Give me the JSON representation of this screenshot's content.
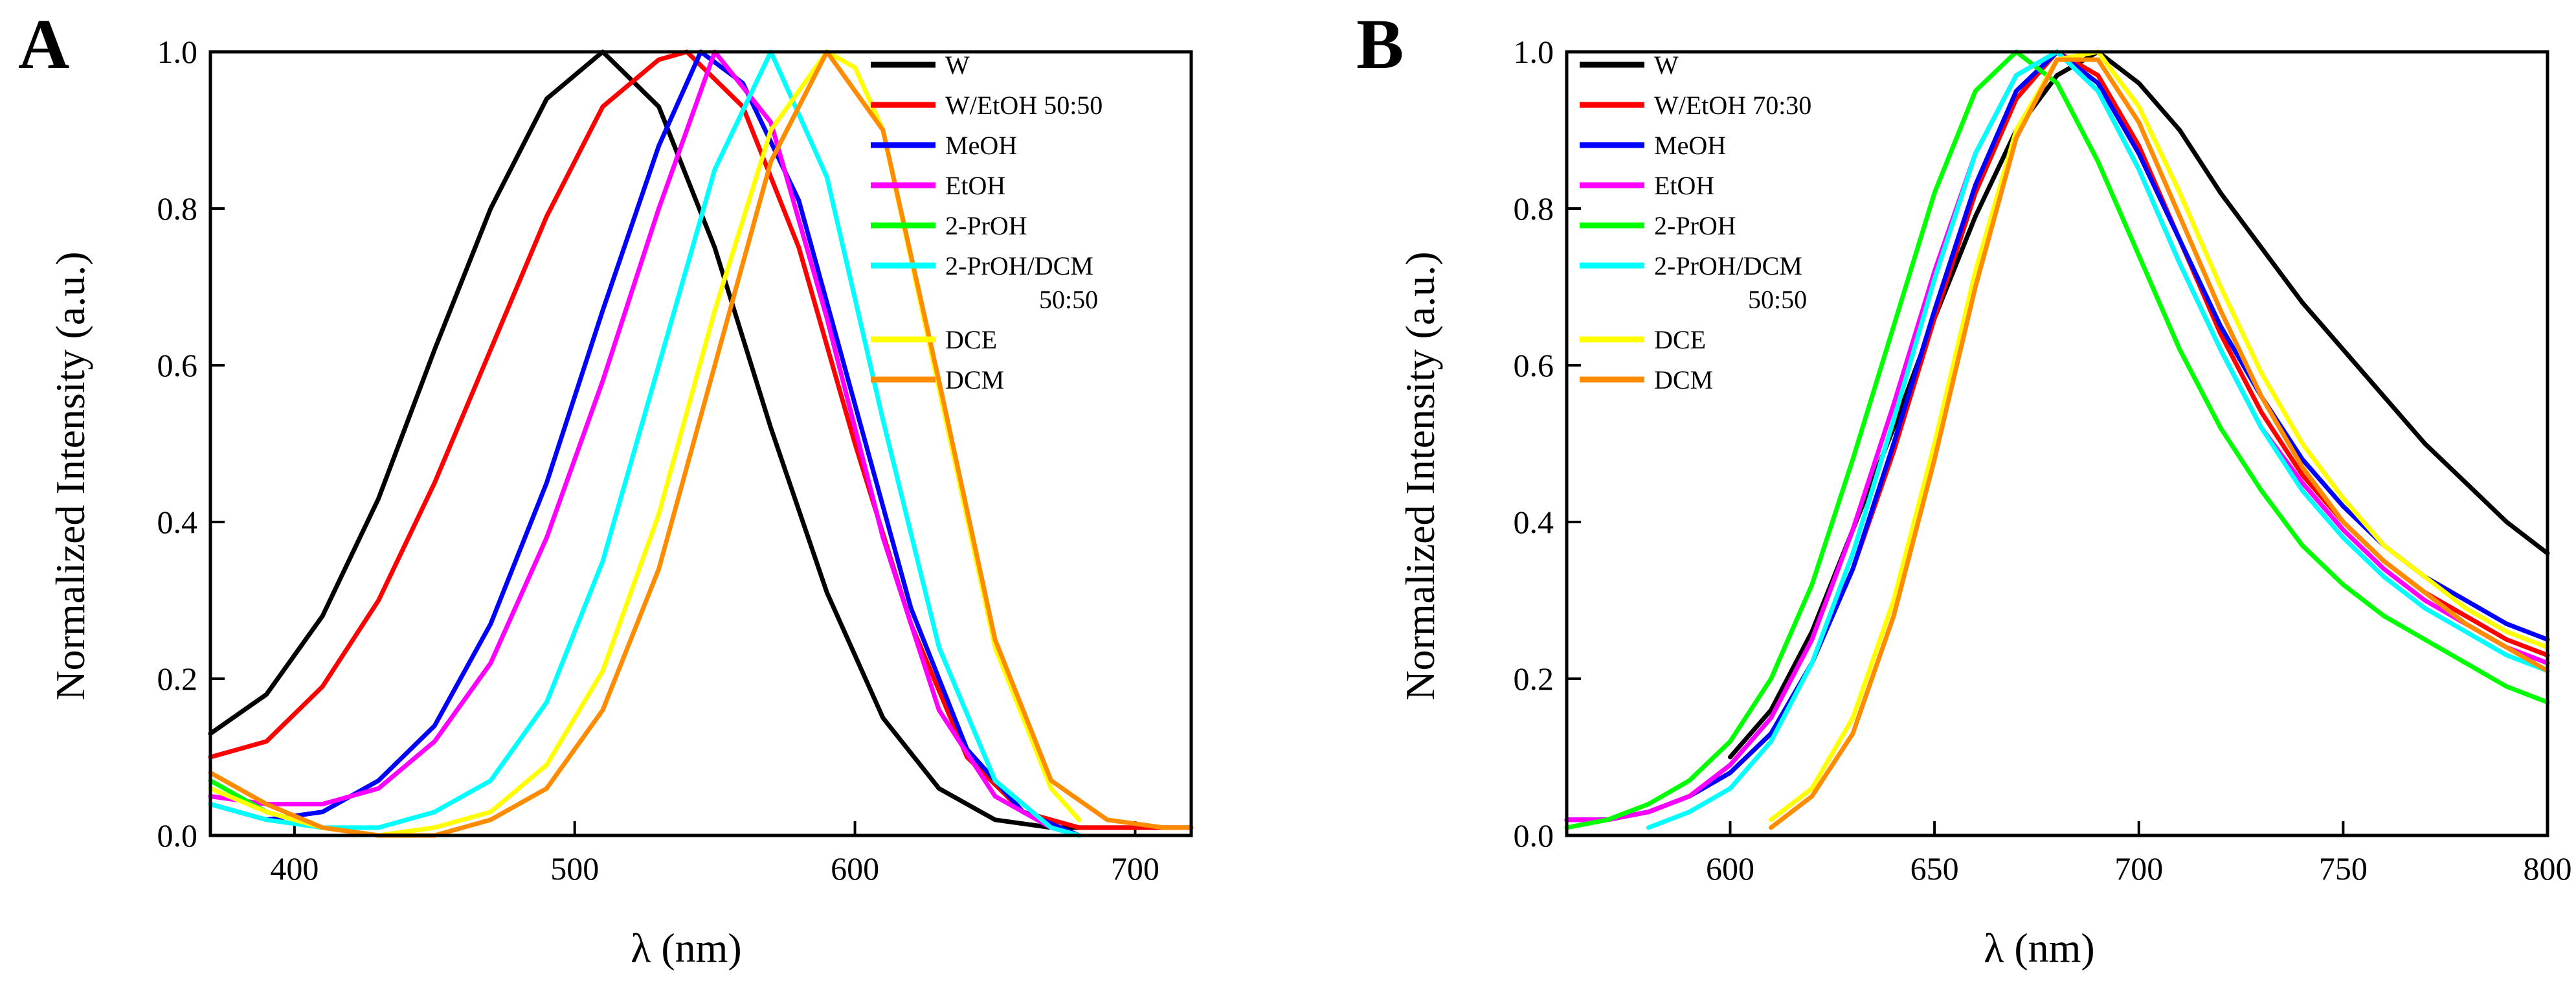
{
  "chart_data": [
    {
      "type": "line",
      "panel": "A",
      "xlabel": "λ (nm)",
      "ylabel": "Normalized Intensity (a.u.)",
      "xlim": [
        370,
        720
      ],
      "ylim": [
        0,
        1.0
      ],
      "xticks": [
        "400",
        "500",
        "600",
        "700"
      ],
      "yticks": [
        "0.0",
        "0.2",
        "0.4",
        "0.6",
        "0.8",
        "1.0"
      ],
      "grid": false,
      "legend_position": "top-right",
      "series": [
        {
          "name": "W",
          "color": "#000000",
          "x": [
            370,
            390,
            410,
            430,
            450,
            470,
            490,
            510,
            530,
            550,
            570,
            590,
            610,
            630,
            650,
            670,
            690,
            710,
            720
          ],
          "y": [
            0.13,
            0.18,
            0.28,
            0.43,
            0.62,
            0.8,
            0.94,
            1.0,
            0.93,
            0.75,
            0.52,
            0.31,
            0.15,
            0.06,
            0.02,
            0.01,
            0.01,
            0.01,
            0.01
          ]
        },
        {
          "name": "W/EtOH 50:50",
          "color": "#ff0000",
          "x": [
            370,
            390,
            410,
            430,
            450,
            470,
            490,
            510,
            530,
            540,
            560,
            580,
            600,
            620,
            640,
            660,
            680,
            700,
            720
          ],
          "y": [
            0.1,
            0.12,
            0.19,
            0.3,
            0.45,
            0.62,
            0.79,
            0.93,
            0.99,
            1.0,
            0.93,
            0.75,
            0.5,
            0.27,
            0.1,
            0.03,
            0.01,
            0.01,
            0.01
          ]
        },
        {
          "name": "MeOH",
          "color": "#0000ff",
          "x": [
            370,
            390,
            410,
            430,
            450,
            470,
            490,
            510,
            530,
            545,
            560,
            580,
            600,
            620,
            640,
            660,
            680
          ],
          "y": [
            0.04,
            0.02,
            0.03,
            0.07,
            0.14,
            0.27,
            0.45,
            0.67,
            0.88,
            1.0,
            0.96,
            0.81,
            0.55,
            0.29,
            0.11,
            0.03,
            0.0
          ]
        },
        {
          "name": "EtOH",
          "color": "#ff00ff",
          "x": [
            370,
            390,
            410,
            430,
            450,
            470,
            490,
            510,
            530,
            550,
            570,
            590,
            610,
            630,
            650,
            670,
            680
          ],
          "y": [
            0.05,
            0.04,
            0.04,
            0.06,
            0.12,
            0.22,
            0.38,
            0.58,
            0.8,
            1.0,
            0.91,
            0.66,
            0.38,
            0.16,
            0.05,
            0.01,
            0.0
          ]
        },
        {
          "name": "2-PrOH",
          "color": "#00ff00",
          "x": [
            370,
            380,
            390,
            400,
            410
          ],
          "y": [
            0.07,
            0.05,
            0.03,
            0.02,
            0.01
          ]
        },
        {
          "name": "2-PrOH/DCM 50:50",
          "color": "#00ffff",
          "x": [
            370,
            390,
            410,
            430,
            450,
            470,
            490,
            510,
            530,
            550,
            570,
            590,
            610,
            630,
            650,
            670,
            680
          ],
          "y": [
            0.04,
            0.02,
            0.01,
            0.01,
            0.03,
            0.07,
            0.17,
            0.35,
            0.6,
            0.85,
            1.0,
            0.84,
            0.53,
            0.24,
            0.07,
            0.01,
            0.0
          ]
        },
        {
          "name": "DCE",
          "color": "#ffff00",
          "x": [
            370,
            390,
            410,
            430,
            450,
            470,
            490,
            510,
            530,
            550,
            570,
            590,
            600,
            610,
            630,
            650,
            670,
            680
          ],
          "y": [
            0.06,
            0.03,
            0.01,
            0.0,
            0.01,
            0.03,
            0.09,
            0.21,
            0.41,
            0.67,
            0.9,
            1.0,
            0.98,
            0.9,
            0.57,
            0.24,
            0.06,
            0.02
          ]
        },
        {
          "name": "DCM",
          "color": "#ff8c00",
          "x": [
            370,
            390,
            410,
            430,
            450,
            470,
            490,
            510,
            530,
            550,
            570,
            590,
            610,
            630,
            650,
            670,
            690,
            710,
            720
          ],
          "y": [
            0.08,
            0.04,
            0.01,
            0.0,
            0.0,
            0.02,
            0.06,
            0.16,
            0.34,
            0.6,
            0.86,
            1.0,
            0.9,
            0.58,
            0.25,
            0.07,
            0.02,
            0.01,
            0.01
          ]
        }
      ],
      "legend": [
        {
          "label": "W",
          "color": "#000000"
        },
        {
          "label": "W/EtOH 50:50",
          "color": "#ff0000"
        },
        {
          "label": "MeOH",
          "color": "#0000ff"
        },
        {
          "label": "EtOH",
          "color": "#ff00ff"
        },
        {
          "label": "2-PrOH",
          "color": "#00ff00"
        },
        {
          "label": "2-PrOH/DCM",
          "label2": "50:50",
          "color": "#00ffff"
        },
        {
          "label": "DCE",
          "color": "#ffff00"
        },
        {
          "label": "DCM",
          "color": "#ff8c00"
        }
      ]
    },
    {
      "type": "line",
      "panel": "B",
      "xlabel": "λ (nm)",
      "ylabel": "Normalized Intensity (a.u.)",
      "xlim": [
        560,
        800
      ],
      "ylim": [
        0,
        1.0
      ],
      "xticks": [
        "600",
        "650",
        "700",
        "750",
        "800"
      ],
      "yticks": [
        "0.0",
        "0.2",
        "0.4",
        "0.6",
        "0.8",
        "1.0"
      ],
      "grid": false,
      "legend_position": "top-left",
      "series": [
        {
          "name": "W",
          "color": "#000000",
          "x": [
            600,
            610,
            620,
            630,
            640,
            650,
            660,
            670,
            680,
            690,
            700,
            710,
            720,
            730,
            740,
            750,
            760,
            770,
            780,
            790,
            800
          ],
          "y": [
            0.1,
            0.16,
            0.26,
            0.39,
            0.52,
            0.66,
            0.79,
            0.9,
            0.97,
            1.0,
            0.96,
            0.9,
            0.82,
            0.75,
            0.68,
            0.62,
            0.56,
            0.5,
            0.45,
            0.4,
            0.36
          ]
        },
        {
          "name": "W/EtOH 70:30",
          "color": "#ff0000",
          "x": [
            560,
            570,
            580,
            590,
            600,
            610,
            620,
            630,
            640,
            650,
            660,
            670,
            680,
            690,
            700,
            710,
            720,
            730,
            740,
            750,
            760,
            770,
            780,
            790,
            800
          ],
          "y": [
            0.02,
            0.02,
            0.03,
            0.05,
            0.08,
            0.13,
            0.22,
            0.34,
            0.49,
            0.66,
            0.82,
            0.94,
            1.0,
            0.97,
            0.88,
            0.76,
            0.64,
            0.54,
            0.46,
            0.4,
            0.35,
            0.31,
            0.28,
            0.25,
            0.23
          ]
        },
        {
          "name": "MeOH",
          "color": "#0000ff",
          "x": [
            560,
            570,
            580,
            590,
            600,
            610,
            620,
            630,
            640,
            650,
            660,
            670,
            680,
            690,
            700,
            710,
            720,
            730,
            740,
            750,
            760,
            770,
            780,
            790,
            800
          ],
          "y": [
            0.02,
            0.02,
            0.03,
            0.05,
            0.08,
            0.13,
            0.22,
            0.34,
            0.5,
            0.67,
            0.83,
            0.95,
            1.0,
            0.96,
            0.87,
            0.76,
            0.65,
            0.56,
            0.48,
            0.42,
            0.37,
            0.33,
            0.3,
            0.27,
            0.25
          ]
        },
        {
          "name": "EtOH",
          "color": "#ff00ff",
          "x": [
            560,
            570,
            580,
            590,
            600,
            610,
            620,
            630,
            640,
            650,
            660,
            670,
            680,
            690,
            700,
            710,
            720,
            730,
            740,
            750,
            760,
            770,
            780,
            790,
            800
          ],
          "y": [
            0.02,
            0.02,
            0.03,
            0.05,
            0.09,
            0.15,
            0.25,
            0.39,
            0.55,
            0.72,
            0.87,
            0.97,
            1.0,
            0.95,
            0.85,
            0.73,
            0.62,
            0.52,
            0.45,
            0.39,
            0.34,
            0.3,
            0.27,
            0.24,
            0.22
          ]
        },
        {
          "name": "2-PrOH",
          "color": "#00ff00",
          "x": [
            560,
            570,
            580,
            590,
            600,
            610,
            620,
            630,
            640,
            650,
            660,
            670,
            680,
            690,
            700,
            710,
            720,
            730,
            740,
            750,
            760,
            770,
            780,
            790,
            800
          ],
          "y": [
            0.01,
            0.02,
            0.04,
            0.07,
            0.12,
            0.2,
            0.32,
            0.48,
            0.65,
            0.82,
            0.95,
            1.0,
            0.96,
            0.86,
            0.74,
            0.62,
            0.52,
            0.44,
            0.37,
            0.32,
            0.28,
            0.25,
            0.22,
            0.19,
            0.17
          ]
        },
        {
          "name": "2-PrOH/DCM 50:50",
          "color": "#00ffff",
          "x": [
            580,
            590,
            600,
            610,
            620,
            630,
            640,
            650,
            660,
            670,
            680,
            690,
            700,
            710,
            720,
            730,
            740,
            750,
            760,
            770,
            780,
            790,
            800
          ],
          "y": [
            0.01,
            0.03,
            0.06,
            0.12,
            0.22,
            0.36,
            0.53,
            0.71,
            0.87,
            0.97,
            1.0,
            0.95,
            0.85,
            0.73,
            0.62,
            0.52,
            0.44,
            0.38,
            0.33,
            0.29,
            0.26,
            0.23,
            0.21
          ]
        },
        {
          "name": "DCE",
          "color": "#ffff00",
          "x": [
            610,
            620,
            630,
            640,
            650,
            660,
            670,
            680,
            690,
            700,
            710,
            720,
            730,
            740,
            750,
            760,
            770,
            780,
            790,
            800
          ],
          "y": [
            0.02,
            0.06,
            0.15,
            0.3,
            0.5,
            0.72,
            0.9,
            0.99,
            1.0,
            0.93,
            0.82,
            0.7,
            0.59,
            0.5,
            0.43,
            0.37,
            0.33,
            0.29,
            0.26,
            0.24
          ]
        },
        {
          "name": "DCM",
          "color": "#ff8c00",
          "x": [
            610,
            620,
            630,
            640,
            650,
            660,
            670,
            680,
            690,
            700,
            710,
            720,
            730,
            740,
            750,
            760,
            770,
            780,
            790,
            800
          ],
          "y": [
            0.01,
            0.05,
            0.13,
            0.28,
            0.48,
            0.7,
            0.89,
            0.99,
            0.99,
            0.91,
            0.79,
            0.67,
            0.56,
            0.47,
            0.4,
            0.35,
            0.31,
            0.27,
            0.24,
            0.21
          ]
        }
      ],
      "legend": [
        {
          "label": "W",
          "color": "#000000"
        },
        {
          "label": "W/EtOH 70:30",
          "color": "#ff0000"
        },
        {
          "label": "MeOH",
          "color": "#0000ff"
        },
        {
          "label": "EtOH",
          "color": "#ff00ff"
        },
        {
          "label": "2-PrOH",
          "color": "#00ff00"
        },
        {
          "label": "2-PrOH/DCM",
          "label2": "50:50",
          "color": "#00ffff"
        },
        {
          "label": "DCE",
          "color": "#ffff00"
        },
        {
          "label": "DCM",
          "color": "#ff8c00"
        }
      ]
    }
  ]
}
